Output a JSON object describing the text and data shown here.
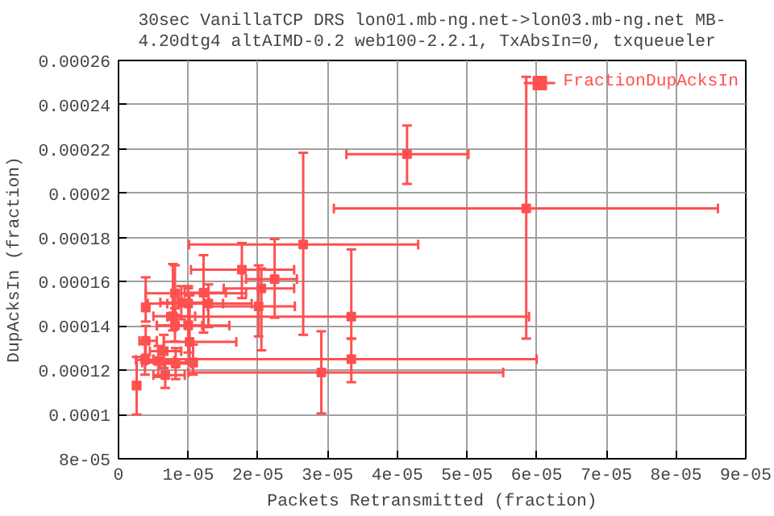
{
  "chart_data": {
    "type": "scatter",
    "title": "30sec VanillaTCP DRS lon01.mb-ng.net->lon03.mb-ng.net MB-\n4.20dtg4 altAIMD-0.2 web100-2.2.1, TxAbsIn=0, txqueueler",
    "xlabel": "Packets Retransmitted (fraction)",
    "ylabel": "DupAcksIn (fraction)",
    "series": [
      {
        "name": "FractionDupAcksIn",
        "color": "#ff5050",
        "x": [
          4.14e-05,
          5.85e-05,
          2.65e-05,
          3.34e-05,
          3.34e-05,
          2.91e-05,
          2.6e-06,
          3.9e-06,
          3.9e-06,
          3.8e-06,
          6.5e-06,
          5.7e-06,
          6.7e-06,
          8.2e-06,
          7.8e-06,
          8.1e-06,
          9e-06,
          1e-05,
          1.02e-05,
          1.07e-05,
          1.22e-05,
          1.29e-05,
          1.77e-05,
          2.05e-05,
          2.01e-05,
          2.24e-05,
          8.1e-06,
          1e-05
        ],
        "values": [
          0.0002176,
          0.0001931,
          0.0001768,
          0.0001442,
          0.000125,
          0.000119,
          0.0001131,
          0.0001484,
          0.0001333,
          0.0001247,
          0.0001286,
          0.0001242,
          0.0001178,
          0.000123,
          0.0001444,
          0.0001548,
          0.0001506,
          0.0001402,
          0.0001328,
          0.0001235,
          0.0001551,
          0.0001501,
          0.0001654,
          0.000157,
          0.0001489,
          0.0001612,
          0.0001402,
          0.0001501
        ],
        "errors": [
          [
            0.0002042,
            0.0002306
          ],
          [
            0.0001343,
            0.0002526
          ],
          [
            0.000136,
            0.0002183
          ],
          [
            0.0001343,
            0.0001746
          ],
          [
            0.0001146,
            0.0001343
          ],
          [
            0.0001005,
            0.0001376
          ],
          [
            0.0001,
            0.000126
          ],
          [
            0.000142,
            0.000162
          ],
          [
            0.000127,
            0.00014
          ],
          [
            0.000118,
            0.000132
          ],
          [
            0.000121,
            0.000136
          ],
          [
            0.000117,
            0.000131
          ],
          [
            0.000112,
            0.000125
          ],
          [
            0.000116,
            0.00013
          ],
          [
            0.000138,
            0.000168
          ],
          [
            0.000145,
            0.0001674
          ],
          [
            0.000143,
            0.000158
          ],
          [
            0.000128,
            0.000157
          ],
          [
            0.0001242,
            0.0001538
          ],
          [
            0.000118,
            0.0001316
          ],
          [
            0.000137,
            0.000172
          ],
          [
            0.0001395,
            0.0001588
          ],
          [
            0.0001526,
            0.0001775
          ],
          [
            0.000129,
            0.000166
          ],
          [
            0.0001353,
            0.0001674
          ],
          [
            0.0001437,
            0.0001793
          ],
          [
            0.000133,
            0.000148
          ],
          [
            0.000142,
            0.000158
          ]
        ],
        "xerrors": [
          [
            3.27e-05,
            5.02e-05
          ],
          [
            3.09e-05,
            8.6e-05
          ],
          [
            1.01e-05,
            4.3e-05
          ],
          [
            7e-06,
            5.89e-05
          ],
          [
            5e-06,
            6e-05
          ],
          [
            1e-05,
            5.52e-05
          ],
          [
            2.1e-06,
            3.1e-06
          ],
          [
            3.4e-06,
            4.4e-06
          ],
          [
            3e-06,
            5.5e-06
          ],
          [
            2.5e-06,
            5e-06
          ],
          [
            4.5e-06,
            9e-06
          ],
          [
            4e-06,
            8e-06
          ],
          [
            5e-06,
            9.5e-06
          ],
          [
            6e-06,
            1.05e-05
          ],
          [
            5e-06,
            1.1e-05
          ],
          [
            3.9e-06,
            1.83e-05
          ],
          [
            6e-06,
            1.3e-05
          ],
          [
            5.5e-06,
            1.59e-05
          ],
          [
            6.5e-06,
            1.69e-05
          ],
          [
            3.4e-06,
            1.12e-05
          ],
          [
            9.5e-06,
            1.54e-05
          ],
          [
            4.2e-06,
            1.91e-05
          ],
          [
            1.04e-05,
            2.52e-05
          ],
          [
            1.51e-05,
            2.52e-05
          ],
          [
            1.28e-05,
            2.53e-05
          ],
          [
            1.83e-05,
            2.56e-05
          ],
          [
            5.5e-06,
            1.2e-05
          ],
          [
            7e-06,
            1.5e-05
          ]
        ]
      }
    ],
    "xlim": [
      0,
      9e-05
    ],
    "ylim": [
      8e-05,
      0.00026
    ],
    "xticks": [
      0,
      {
        "value": 1e-05,
        "label": "1e-05"
      },
      {
        "value": 2e-05,
        "label": "2e-05"
      },
      {
        "value": 3e-05,
        "label": "3e-05"
      },
      {
        "value": 4e-05,
        "label": "4e-05"
      },
      {
        "value": 5e-05,
        "label": "5e-05"
      },
      {
        "value": 6e-05,
        "label": "6e-05"
      },
      {
        "value": 7e-05,
        "label": "7e-05"
      },
      {
        "value": 8e-05,
        "label": "8e-05"
      },
      {
        "value": 9e-05,
        "label": "9e-05"
      }
    ],
    "yticks": [
      {
        "value": 8e-05,
        "label": "8e-05"
      },
      0.0001,
      0.00012,
      0.00014,
      0.00016,
      0.00018,
      0.0002,
      0.00022,
      0.00024,
      0.00026
    ],
    "grid": true,
    "legend": "top right",
    "marker": "square"
  }
}
